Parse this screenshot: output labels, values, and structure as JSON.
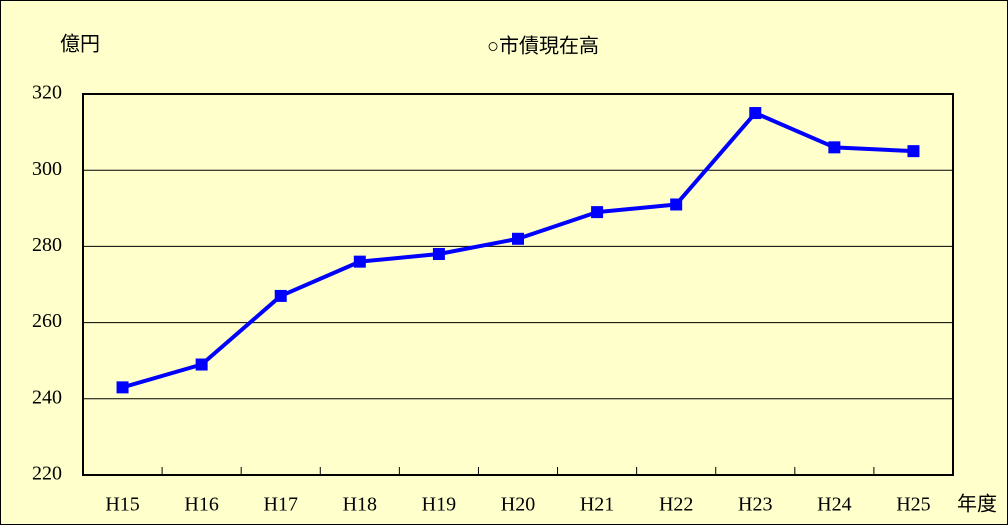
{
  "chart_data": {
    "type": "line",
    "title": "○市債現在高",
    "y_label": "億円",
    "x_label": "年度",
    "categories": [
      "H15",
      "H16",
      "H17",
      "H18",
      "H19",
      "H20",
      "H21",
      "H22",
      "H23",
      "H24",
      "H25"
    ],
    "series": [
      {
        "name": "市債現在高",
        "color": "#0000ff",
        "values": [
          243,
          249,
          267,
          276,
          278,
          282,
          289,
          291,
          315,
          306,
          305
        ]
      }
    ],
    "ylim": [
      220,
      320
    ],
    "yticks": [
      220,
      240,
      260,
      280,
      300,
      320
    ],
    "grid": true,
    "background": "#ffffcc"
  }
}
